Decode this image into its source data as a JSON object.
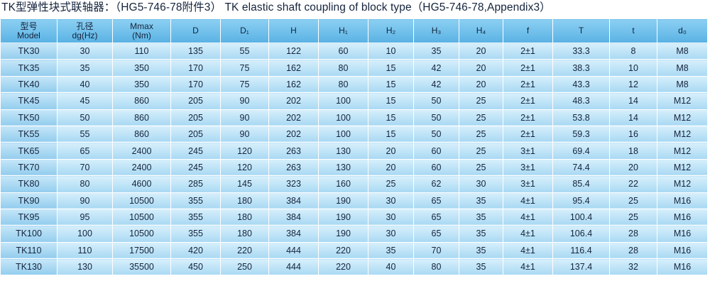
{
  "title": "TK型弹性块式联轴器：（HG5-746-78附件3） TK elastic shaft coupling of block type（HG5-746-78,Appendix3）",
  "table": {
    "header": [
      [
        "型号",
        "Model"
      ],
      [
        "孔径",
        "dg(Hz)"
      ],
      [
        "Mmax",
        "(Nm)"
      ],
      [
        "D"
      ],
      [
        "D₁"
      ],
      [
        "H"
      ],
      [
        "H₁"
      ],
      [
        "H₂"
      ],
      [
        "H₃"
      ],
      [
        "H₄"
      ],
      [
        "f"
      ],
      [
        "T"
      ],
      [
        "t"
      ],
      [
        "d₀"
      ]
    ],
    "rows": [
      [
        "TK30",
        "30",
        "110",
        "135",
        "55",
        "122",
        "60",
        "10",
        "35",
        "20",
        "2±1",
        "33.3",
        "8",
        "M8"
      ],
      [
        "TK35",
        "35",
        "350",
        "170",
        "75",
        "162",
        "80",
        "15",
        "42",
        "20",
        "2±1",
        "38.3",
        "10",
        "M8"
      ],
      [
        "TK40",
        "40",
        "350",
        "170",
        "75",
        "162",
        "80",
        "15",
        "42",
        "20",
        "2±1",
        "43.3",
        "12",
        "M8"
      ],
      [
        "TK45",
        "45",
        "860",
        "205",
        "90",
        "202",
        "100",
        "15",
        "50",
        "25",
        "2±1",
        "48.3",
        "14",
        "M12"
      ],
      [
        "TK50",
        "50",
        "860",
        "205",
        "90",
        "202",
        "100",
        "15",
        "50",
        "25",
        "2±1",
        "53.8",
        "14",
        "M12"
      ],
      [
        "TK55",
        "55",
        "860",
        "205",
        "90",
        "202",
        "100",
        "15",
        "50",
        "25",
        "2±1",
        "59.3",
        "16",
        "M12"
      ],
      [
        "TK65",
        "65",
        "2400",
        "245",
        "120",
        "263",
        "130",
        "20",
        "60",
        "25",
        "3±1",
        "69.4",
        "18",
        "M12"
      ],
      [
        "TK70",
        "70",
        "2400",
        "245",
        "120",
        "263",
        "130",
        "20",
        "60",
        "25",
        "3±1",
        "74.4",
        "20",
        "M12"
      ],
      [
        "TK80",
        "80",
        "4600",
        "285",
        "145",
        "323",
        "160",
        "25",
        "62",
        "30",
        "3±1",
        "85.4",
        "22",
        "M12"
      ],
      [
        "TK90",
        "90",
        "10500",
        "355",
        "180",
        "384",
        "190",
        "30",
        "65",
        "35",
        "4±1",
        "95.4",
        "25",
        "M16"
      ],
      [
        "TK95",
        "95",
        "10500",
        "355",
        "180",
        "384",
        "190",
        "30",
        "65",
        "35",
        "4±1",
        "100.4",
        "25",
        "M16"
      ],
      [
        "TK100",
        "100",
        "10500",
        "355",
        "180",
        "384",
        "190",
        "30",
        "65",
        "35",
        "4±1",
        "106.4",
        "28",
        "M16"
      ],
      [
        "TK110",
        "110",
        "17500",
        "420",
        "220",
        "444",
        "220",
        "35",
        "70",
        "35",
        "4±1",
        "116.4",
        "28",
        "M16"
      ],
      [
        "TK130",
        "130",
        "35500",
        "450",
        "250",
        "444",
        "220",
        "40",
        "80",
        "35",
        "4±1",
        "137.4",
        "32",
        "M16"
      ]
    ]
  }
}
